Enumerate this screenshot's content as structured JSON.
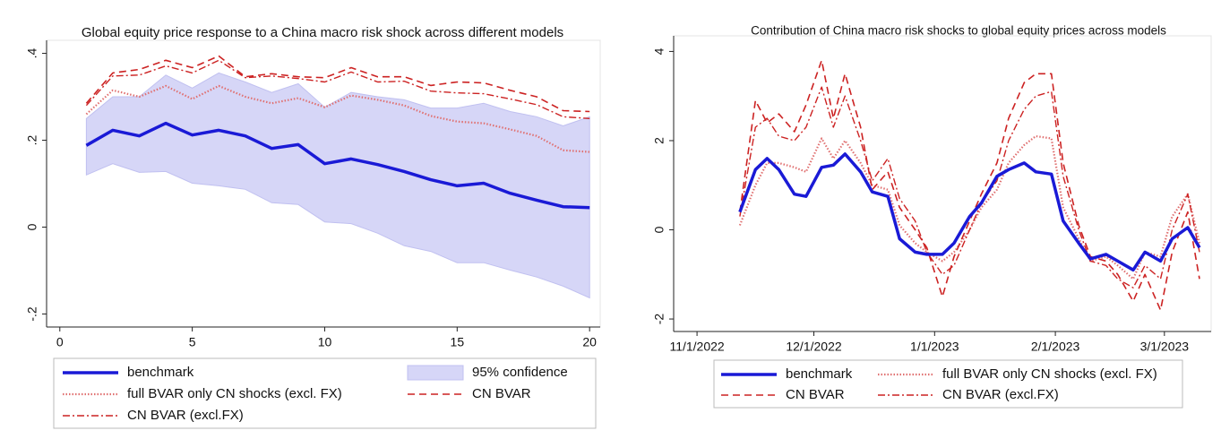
{
  "chart_data": [
    {
      "type": "line",
      "title": "Global equity price response to a China macro risk shock across different models",
      "x": [
        1,
        2,
        3,
        4,
        5,
        6,
        7,
        8,
        9,
        10,
        11,
        12,
        13,
        14,
        15,
        16,
        17,
        18,
        19,
        20
      ],
      "xlim": [
        -0.5,
        20.4
      ],
      "xticks": [
        0,
        5,
        10,
        15,
        20
      ],
      "ylim": [
        -0.23,
        0.43
      ],
      "yticks": [
        {
          "value": -0.2,
          "label": "-.2"
        },
        0,
        {
          "value": 0.2,
          "label": ".2"
        },
        {
          "value": 0.4,
          "label": ".4"
        }
      ],
      "series": [
        {
          "name": "benchmark",
          "color": "#1a1ad6",
          "style": "solid",
          "values": [
            0.188,
            0.223,
            0.21,
            0.239,
            0.212,
            0.223,
            0.21,
            0.181,
            0.19,
            0.146,
            0.157,
            0.144,
            0.128,
            0.109,
            0.095,
            0.101,
            0.078,
            0.062,
            0.047,
            0.045
          ]
        },
        {
          "name": "95% confidence",
          "color": "#d6d6f7",
          "style": "band",
          "upper": [
            0.25,
            0.3,
            0.3,
            0.35,
            0.32,
            0.355,
            0.334,
            0.31,
            0.33,
            0.276,
            0.31,
            0.3,
            0.293,
            0.274,
            0.274,
            0.285,
            0.266,
            0.254,
            0.233,
            0.254
          ],
          "lower": [
            0.12,
            0.146,
            0.126,
            0.128,
            0.101,
            0.095,
            0.087,
            0.056,
            0.052,
            0.012,
            0.008,
            -0.014,
            -0.043,
            -0.056,
            -0.082,
            -0.082,
            -0.099,
            -0.115,
            -0.136,
            -0.163
          ]
        },
        {
          "name": "full BVAR only CN shocks (excl. FX)",
          "color": "#e07070",
          "style": "dotted",
          "values": [
            0.26,
            0.315,
            0.3,
            0.325,
            0.295,
            0.325,
            0.3,
            0.285,
            0.297,
            0.276,
            0.303,
            0.293,
            0.28,
            0.256,
            0.243,
            0.239,
            0.225,
            0.21,
            0.177,
            0.173
          ]
        },
        {
          "name": "CN BVAR",
          "color": "#cc2222",
          "style": "dashed",
          "values": [
            0.285,
            0.355,
            0.363,
            0.384,
            0.367,
            0.394,
            0.346,
            0.353,
            0.346,
            0.344,
            0.367,
            0.346,
            0.346,
            0.326,
            0.334,
            0.332,
            0.315,
            0.3,
            0.268,
            0.266
          ]
        },
        {
          "name": "CN BVAR (excl.FX)",
          "color": "#cc2222",
          "style": "dashdot",
          "values": [
            0.28,
            0.348,
            0.35,
            0.371,
            0.355,
            0.384,
            0.344,
            0.348,
            0.342,
            0.334,
            0.357,
            0.334,
            0.336,
            0.313,
            0.309,
            0.307,
            0.295,
            0.282,
            0.254,
            0.25
          ]
        }
      ]
    },
    {
      "type": "line",
      "title": "Contribution of China macro risk shocks to global equity prices across models",
      "x": [
        "11/12/2022",
        "11/16/2022",
        "11/19/2022",
        "11/22/2022",
        "11/26/2022",
        "11/29/2022",
        "12/3/2022",
        "12/6/2022",
        "12/9/2022",
        "12/13/2022",
        "12/16/2022",
        "12/20/2022",
        "12/23/2022",
        "12/27/2022",
        "12/30/2022",
        "1/3/2023",
        "1/6/2023",
        "1/10/2023",
        "1/13/2023",
        "1/17/2023",
        "1/20/2023",
        "1/24/2023",
        "1/27/2023",
        "1/31/2023",
        "2/3/2023",
        "2/7/2023",
        "2/10/2023",
        "2/14/2023",
        "2/17/2023",
        "2/21/2023",
        "2/24/2023",
        "2/28/2023",
        "3/3/2023",
        "3/7/2023",
        "3/10/2023"
      ],
      "xlim": [
        "10/26/2022",
        "3/13/2023"
      ],
      "xticks": [
        "11/1/2022",
        "12/1/2022",
        "1/1/2023",
        "2/1/2023",
        "3/1/2023"
      ],
      "ylim": [
        -2.28,
        4.35
      ],
      "yticks": [
        -2,
        0,
        2,
        4
      ],
      "series": [
        {
          "name": "benchmark",
          "color": "#1a1ad6",
          "style": "solid",
          "values": [
            0.4,
            1.35,
            1.6,
            1.35,
            0.8,
            0.75,
            1.4,
            1.45,
            1.7,
            1.3,
            0.85,
            0.75,
            -0.2,
            -0.5,
            -0.55,
            -0.55,
            -0.3,
            0.3,
            0.6,
            1.2,
            1.35,
            1.5,
            1.3,
            1.25,
            0.2,
            -0.3,
            -0.65,
            -0.55,
            -0.7,
            -0.9,
            -0.5,
            -0.7,
            -0.2,
            0.05,
            -0.4
          ]
        },
        {
          "name": "full BVAR only CN shocks (excl. FX)",
          "color": "#e07070",
          "style": "dotted",
          "values": [
            0.1,
            1.0,
            1.5,
            1.5,
            1.4,
            1.3,
            2.05,
            1.6,
            2.0,
            1.5,
            1.0,
            0.9,
            0.1,
            -0.3,
            -0.5,
            -0.7,
            -0.5,
            0.0,
            0.5,
            0.9,
            1.5,
            1.9,
            2.1,
            2.05,
            0.5,
            -0.2,
            -0.7,
            -0.6,
            -0.8,
            -1.1,
            -0.5,
            -0.6,
            0.3,
            0.8,
            -0.3
          ]
        },
        {
          "name": "CN BVAR",
          "color": "#cc2222",
          "style": "dashed",
          "values": [
            0.4,
            2.9,
            2.4,
            2.6,
            2.2,
            2.8,
            3.8,
            2.5,
            3.5,
            2.3,
            0.9,
            1.3,
            0.5,
            0.0,
            -0.4,
            -1.5,
            -0.6,
            0.2,
            0.8,
            1.5,
            2.5,
            3.3,
            3.5,
            3.5,
            1.5,
            0.1,
            -0.6,
            -0.7,
            -1.0,
            -1.6,
            -1.0,
            -1.8,
            -0.5,
            0.4,
            -1.1
          ]
        },
        {
          "name": "CN BVAR (excl.FX)",
          "color": "#cc2222",
          "style": "dashdot",
          "values": [
            0.3,
            2.3,
            2.5,
            2.1,
            2.0,
            2.3,
            3.2,
            2.3,
            3.0,
            2.0,
            1.1,
            1.6,
            0.7,
            0.2,
            -0.5,
            -1.0,
            -0.8,
            0.0,
            0.6,
            1.1,
            2.0,
            2.7,
            3.0,
            3.1,
            1.2,
            0.0,
            -0.7,
            -0.8,
            -1.1,
            -1.3,
            -0.8,
            -1.1,
            0.0,
            0.8,
            -0.5
          ]
        }
      ]
    }
  ]
}
